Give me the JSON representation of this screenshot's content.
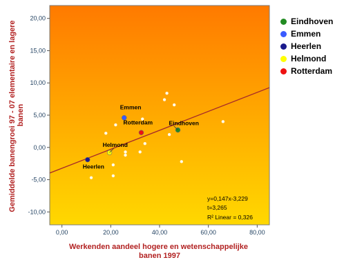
{
  "chart_data": {
    "type": "scatter",
    "xlabel": "Werkenden aandeel hogere en wetenschappelijke banen 1997",
    "ylabel": "Gemiddelde banengroei 97 - 07 elementaire en lagere banen",
    "xlim": [
      -5,
      85
    ],
    "ylim": [
      -12,
      22
    ],
    "xticks": [
      "0,00",
      "20,00",
      "40,00",
      "60,00",
      "80,00"
    ],
    "yticks": [
      "20,00",
      "15,00",
      "10,00",
      "5,00",
      "0,00",
      "-5,00",
      "-10,00"
    ],
    "xtick_values": [
      0,
      20,
      40,
      60,
      80
    ],
    "ytick_values": [
      20,
      15,
      10,
      5,
      0,
      -5,
      -10
    ],
    "grid": false,
    "legend_position": "right",
    "background_colors": [
      "#ffd800",
      "#ff7a00"
    ],
    "fit_line": {
      "slope": 0.147,
      "intercept": -3.229,
      "color": "#a52a2a"
    },
    "annotations": [
      "y=0,147x-3,229",
      "t=3,265",
      "R² Linear = 0,326"
    ],
    "highlighted": [
      {
        "name": "Eindhoven",
        "x": 47.5,
        "y": 2.7,
        "color": "#228b22"
      },
      {
        "name": "Emmen",
        "x": 25.5,
        "y": 4.6,
        "color": "#3a5bff"
      },
      {
        "name": "Heerlen",
        "x": 10.5,
        "y": -1.9,
        "color": "#1a1a8c"
      },
      {
        "name": "Helmond",
        "x": 19.5,
        "y": -0.8,
        "color": "#ffff00"
      },
      {
        "name": "Rotterdam",
        "x": 32.5,
        "y": 2.3,
        "color": "#ee1111"
      }
    ],
    "other_points": [
      {
        "x": 12,
        "y": -4.7
      },
      {
        "x": 18,
        "y": 2.2
      },
      {
        "x": 21,
        "y": -2.7
      },
      {
        "x": 21,
        "y": -4.4
      },
      {
        "x": 22,
        "y": 3.5
      },
      {
        "x": 26,
        "y": -0.7
      },
      {
        "x": 26,
        "y": -1.2
      },
      {
        "x": 32,
        "y": -0.7
      },
      {
        "x": 33,
        "y": 4.4
      },
      {
        "x": 34,
        "y": 0.6
      },
      {
        "x": 42,
        "y": 7.4
      },
      {
        "x": 43,
        "y": 8.4
      },
      {
        "x": 44,
        "y": 2.0
      },
      {
        "x": 46,
        "y": 6.6
      },
      {
        "x": 49,
        "y": -2.2
      },
      {
        "x": 66,
        "y": 4.0
      }
    ],
    "legend": [
      {
        "label": "Eindhoven",
        "color": "#228b22"
      },
      {
        "label": "Emmen",
        "color": "#3a5bff"
      },
      {
        "label": "Heerlen",
        "color": "#1a1a8c"
      },
      {
        "label": "Helmond",
        "color": "#ffff00"
      },
      {
        "label": "Rotterdam",
        "color": "#ee1111"
      }
    ]
  }
}
